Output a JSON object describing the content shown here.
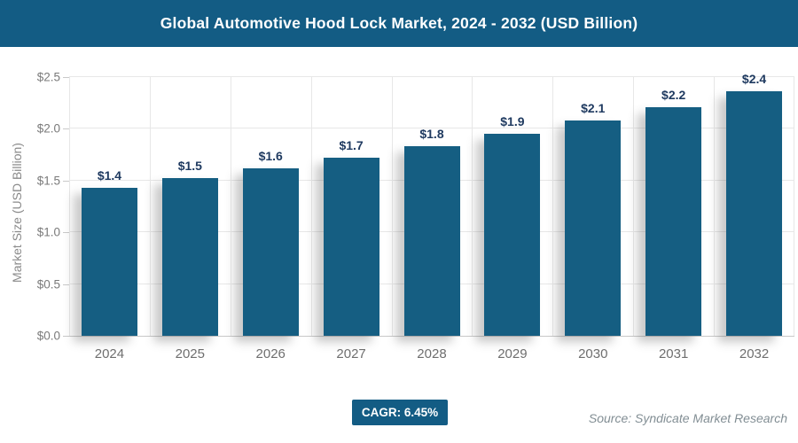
{
  "header": {
    "title": "Global Automotive Hood Lock Market, 2024 - 2032 (USD Billion)"
  },
  "chart_data": {
    "type": "bar",
    "title": "Global Automotive Hood Lock Market, 2024 - 2032 (USD Billion)",
    "categories": [
      "2024",
      "2025",
      "2026",
      "2027",
      "2028",
      "2029",
      "2030",
      "2031",
      "2032"
    ],
    "values": [
      1.43,
      1.52,
      1.62,
      1.72,
      1.83,
      1.95,
      2.08,
      2.21,
      2.36
    ],
    "bar_labels": [
      "$1.4",
      "$1.5",
      "$1.6",
      "$1.7",
      "$1.8",
      "$1.9",
      "$2.1",
      "$2.2",
      "$2.4"
    ],
    "xlabel": "",
    "ylabel": "Market Size (USD Billion)",
    "ylim": [
      0,
      2.5
    ],
    "yticks": {
      "values": [
        0,
        0.5,
        1.0,
        1.5,
        2.0,
        2.5
      ],
      "labels": [
        "$0.0",
        "$0.5",
        "$1.0",
        "$1.5",
        "$2.0",
        "$2.5"
      ]
    },
    "grid": true,
    "legend_position": "none",
    "bar_color": "#155E82",
    "value_label_color": "#1f3a60"
  },
  "footer": {
    "cagr_label": "CAGR: 6.45%",
    "source": "Source: Syndicate Market Research"
  },
  "colors": {
    "accent": "#135C84",
    "gridline": "#e7e7e7",
    "axis_text": "#7a7a7a"
  }
}
